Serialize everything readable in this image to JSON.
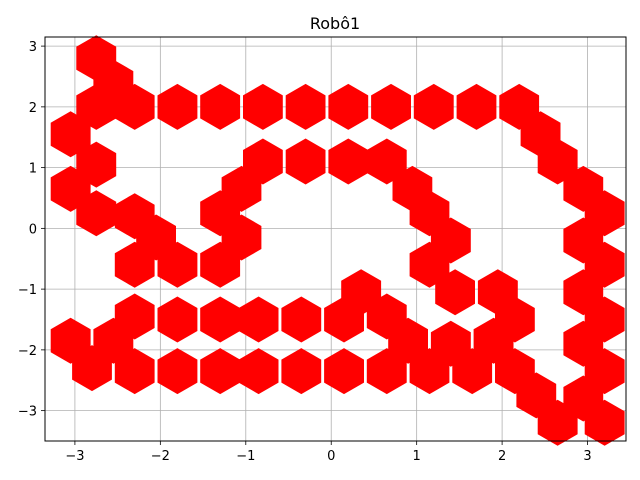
{
  "chart_data": {
    "type": "scatter",
    "title": "Robô1",
    "xlabel": "",
    "ylabel": "",
    "xlim": [
      -3.35,
      3.45
    ],
    "ylim": [
      -3.5,
      3.15
    ],
    "xticks": [
      -3,
      -2,
      -1,
      0,
      1,
      2,
      3
    ],
    "yticks": [
      -3,
      -2,
      -1,
      0,
      1,
      2,
      3
    ],
    "xtick_labels": [
      "−3",
      "−2",
      "−1",
      "0",
      "1",
      "2",
      "3"
    ],
    "ytick_labels": [
      "−3",
      "−2",
      "−1",
      "0",
      "1",
      "2",
      "3"
    ],
    "grid": true,
    "marker": "hexagon",
    "marker_color": "#ff0000",
    "points": [
      [
        -2.75,
        2.8
      ],
      [
        -2.55,
        2.4
      ],
      [
        -2.3,
        2.0
      ],
      [
        -2.75,
        2.0
      ],
      [
        -3.05,
        1.55
      ],
      [
        -2.75,
        1.05
      ],
      [
        -3.05,
        0.65
      ],
      [
        -2.75,
        0.25
      ],
      [
        -1.8,
        2.0
      ],
      [
        -1.3,
        2.0
      ],
      [
        -0.8,
        2.0
      ],
      [
        -0.3,
        2.0
      ],
      [
        0.2,
        2.0
      ],
      [
        0.7,
        2.0
      ],
      [
        1.2,
        2.0
      ],
      [
        1.7,
        2.0
      ],
      [
        2.2,
        2.0
      ],
      [
        2.45,
        1.55
      ],
      [
        2.65,
        1.1
      ],
      [
        2.95,
        0.65
      ],
      [
        3.2,
        0.25
      ],
      [
        2.95,
        -0.2
      ],
      [
        3.2,
        -0.6
      ],
      [
        2.95,
        -1.05
      ],
      [
        3.2,
        -1.5
      ],
      [
        2.95,
        -1.9
      ],
      [
        3.2,
        -2.35
      ],
      [
        2.95,
        -2.8
      ],
      [
        3.2,
        -3.2
      ],
      [
        -0.8,
        1.1
      ],
      [
        -0.3,
        1.1
      ],
      [
        0.2,
        1.1
      ],
      [
        0.65,
        1.1
      ],
      [
        0.95,
        0.65
      ],
      [
        1.15,
        0.25
      ],
      [
        1.4,
        -0.2
      ],
      [
        1.15,
        -0.6
      ],
      [
        1.45,
        -1.05
      ],
      [
        -1.05,
        0.65
      ],
      [
        -1.3,
        0.25
      ],
      [
        -1.05,
        -0.15
      ],
      [
        -1.3,
        -0.6
      ],
      [
        -2.3,
        0.2
      ],
      [
        -2.05,
        -0.15
      ],
      [
        -1.8,
        -0.6
      ],
      [
        -2.3,
        -0.6
      ],
      [
        0.35,
        -1.05
      ],
      [
        0.65,
        -1.45
      ],
      [
        0.9,
        -1.85
      ],
      [
        0.15,
        -1.5
      ],
      [
        -0.35,
        -1.5
      ],
      [
        -0.85,
        -1.5
      ],
      [
        -1.3,
        -1.5
      ],
      [
        -1.8,
        -1.5
      ],
      [
        -2.3,
        -1.45
      ],
      [
        -2.55,
        -1.85
      ],
      [
        -3.05,
        -1.85
      ],
      [
        -2.8,
        -2.3
      ],
      [
        -2.3,
        -2.35
      ],
      [
        -1.8,
        -2.35
      ],
      [
        -1.3,
        -2.35
      ],
      [
        -0.85,
        -2.35
      ],
      [
        -0.35,
        -2.35
      ],
      [
        0.15,
        -2.35
      ],
      [
        0.65,
        -2.35
      ],
      [
        1.15,
        -2.35
      ],
      [
        1.65,
        -2.35
      ],
      [
        1.4,
        -1.9
      ],
      [
        1.9,
        -1.85
      ],
      [
        2.15,
        -1.5
      ],
      [
        1.95,
        -1.05
      ],
      [
        2.15,
        -2.35
      ],
      [
        2.4,
        -2.75
      ],
      [
        2.65,
        -3.2
      ]
    ]
  }
}
